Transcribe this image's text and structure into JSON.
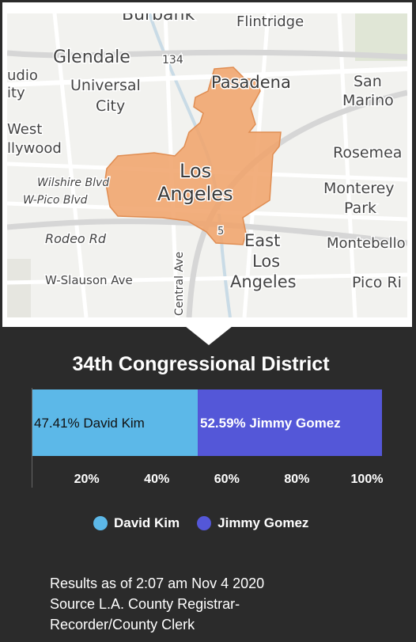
{
  "map": {
    "labels": [
      "Burbank",
      "Flintridge",
      "Glendale",
      "134",
      "udio",
      "ity",
      "Universal",
      "City",
      "Pasadena",
      "San",
      "Marino",
      "West",
      "llywood",
      "Rosemea",
      "Wilshire Blvd",
      "W-Pico Blvd",
      "Los",
      "Angeles",
      "Monterey",
      "Park",
      "Rodeo Rd",
      "5",
      "East",
      "Los",
      "Angeles",
      "Montebello",
      "W-Slauson Ave",
      "Central Ave",
      "Pico Ri"
    ],
    "colors": {
      "district": "#f0a46c",
      "land": "#f2f2ef",
      "road": "#ffffff",
      "major_road": "#d8d8d8"
    }
  },
  "chart_data": {
    "type": "bar",
    "title": "34th Congressional District",
    "orientation": "horizontal-stacked",
    "series": [
      {
        "name": "David Kim",
        "values": [
          47.41
        ],
        "color": "#5cb8e8",
        "label": "47.41% David Kim"
      },
      {
        "name": "Jimmy Gomez",
        "values": [
          52.59
        ],
        "color": "#5457d8",
        "label": "52.59% Jimmy Gomez"
      }
    ],
    "xlim": [
      0,
      100
    ],
    "x_ticks": [
      "20%",
      "40%",
      "60%",
      "80%",
      "100%"
    ],
    "legend_position": "bottom"
  },
  "footer": {
    "line1": "Results as of 2:07 am Nov 4 2020",
    "line2": "Source L.A. County Registrar-",
    "line3": "Recorder/County Clerk"
  }
}
